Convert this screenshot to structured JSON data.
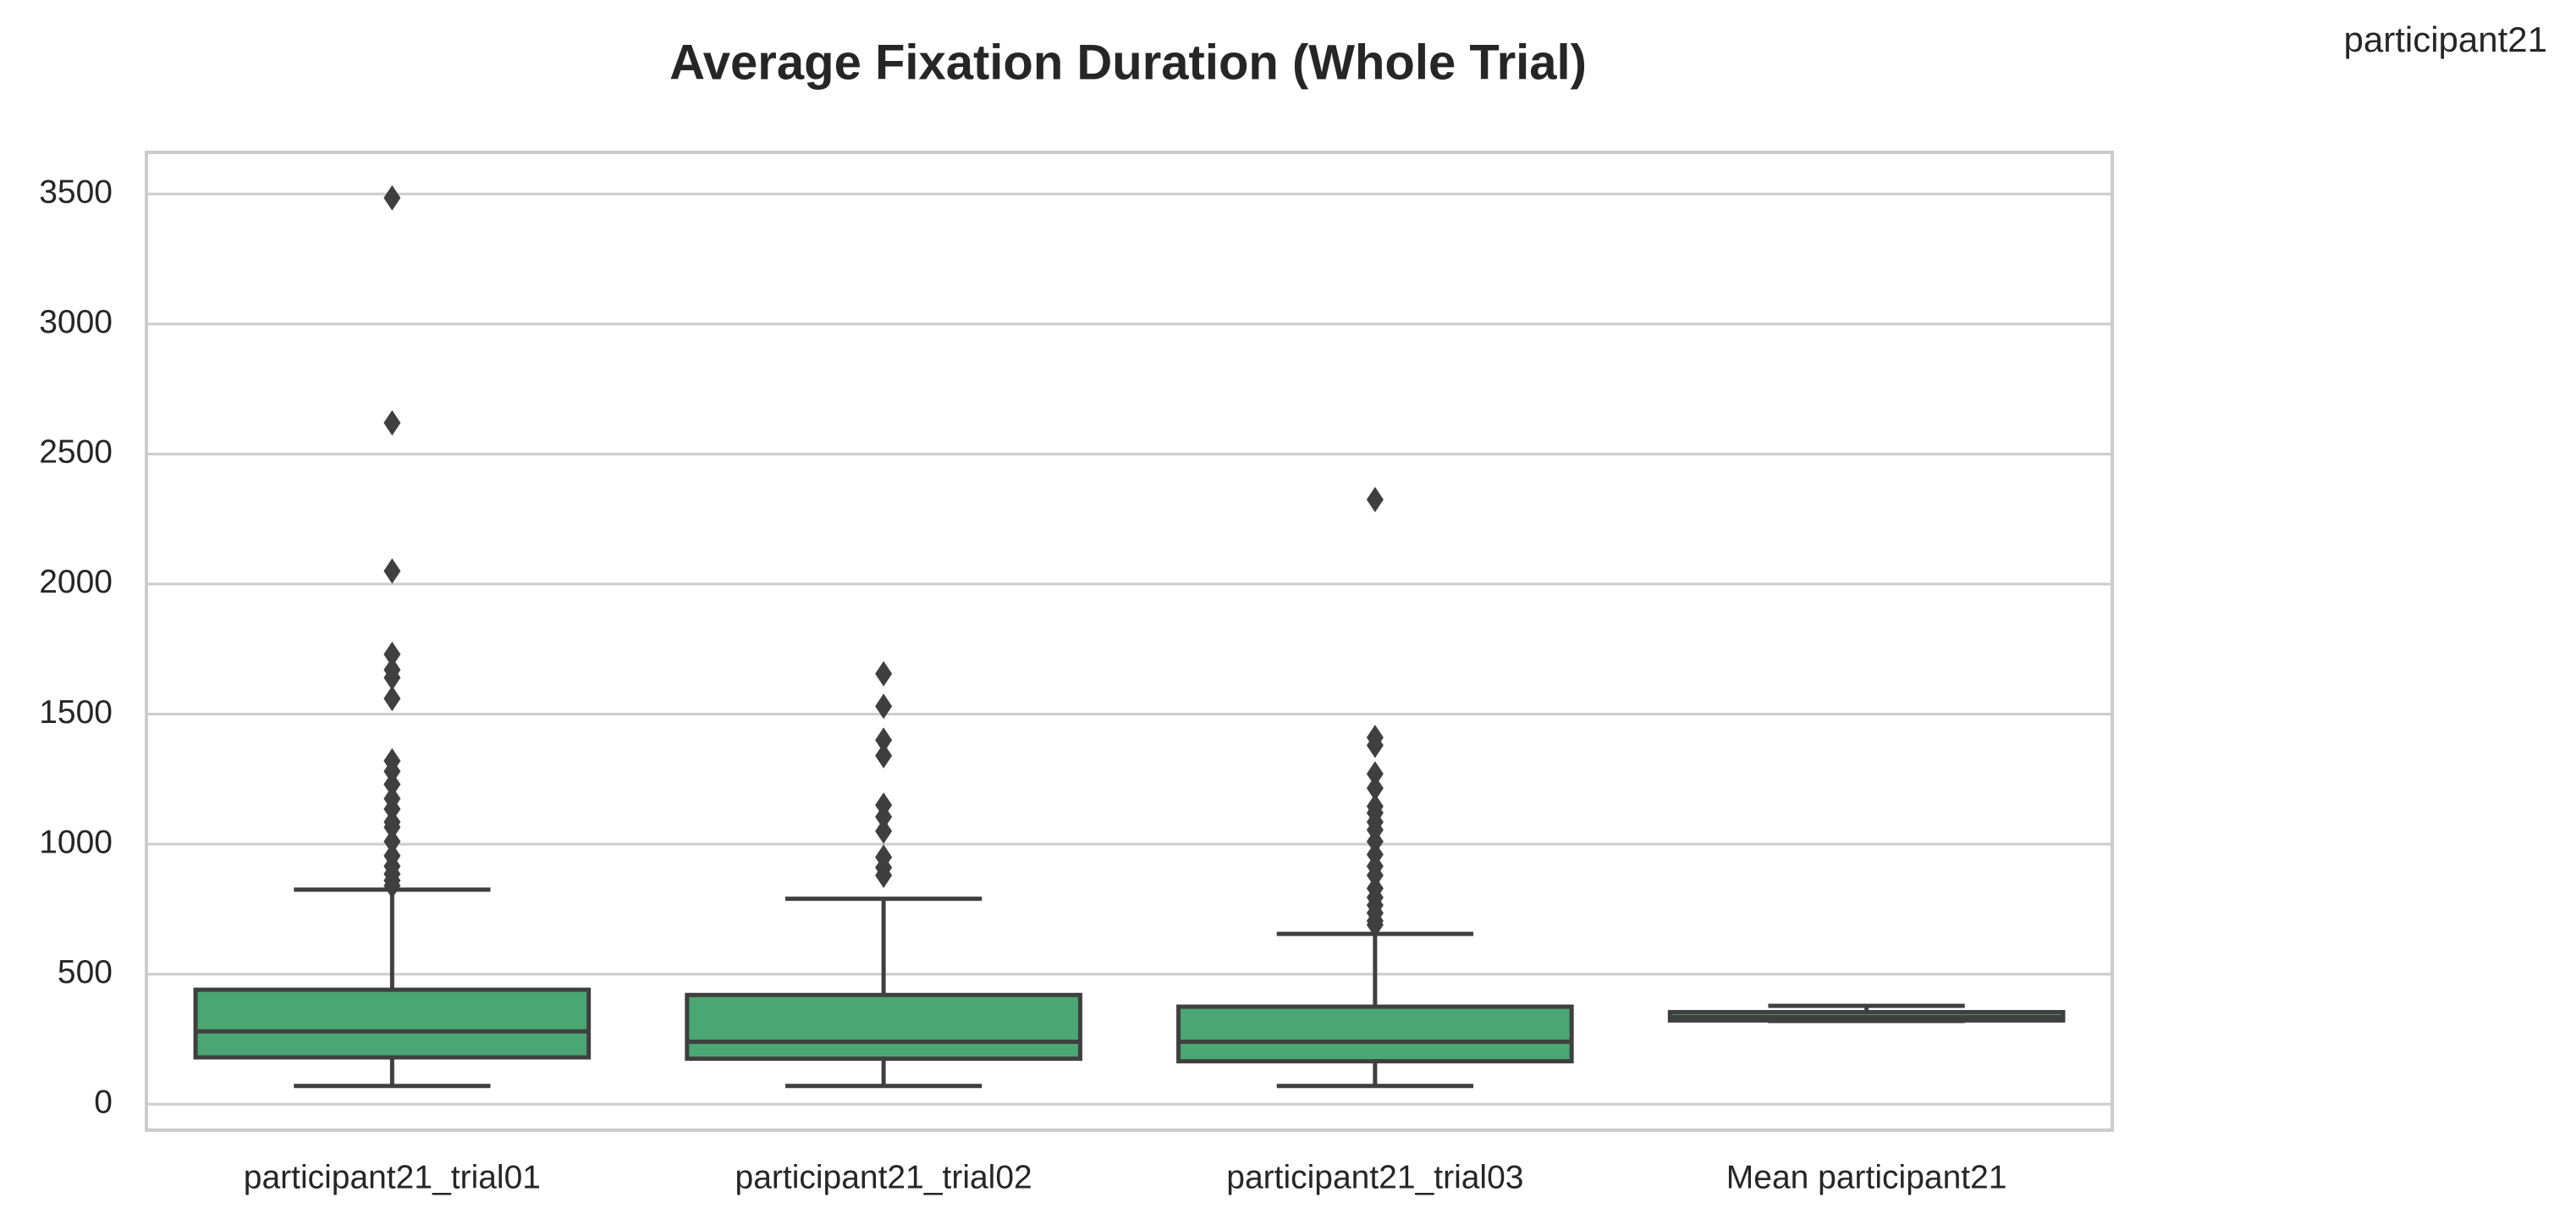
{
  "chart_data": {
    "type": "box",
    "title": "Average Fixation Duration (Whole Trial)",
    "annotation": "participant21",
    "categories": [
      "participant21_trial01",
      "participant21_trial02",
      "participant21_trial03",
      "Mean participant21"
    ],
    "color": "#4aa673",
    "ylim": [
      -100,
      3660
    ],
    "yticks": [
      0,
      500,
      1000,
      1500,
      2000,
      2500,
      3000,
      3500
    ],
    "grid": true,
    "boxes": [
      {
        "whislo": 70,
        "q1": 180,
        "med": 280,
        "q3": 440,
        "whishi": 825,
        "fliers": [
          3485,
          2620,
          2050,
          1730,
          1670,
          1640,
          1560,
          1320,
          1280,
          1230,
          1175,
          1135,
          1085,
          1065,
          1010,
          955,
          915,
          885,
          860,
          840
        ]
      },
      {
        "whislo": 70,
        "q1": 175,
        "med": 240,
        "q3": 420,
        "whishi": 790,
        "fliers": [
          1655,
          1530,
          1400,
          1340,
          1150,
          1105,
          1050,
          950,
          910,
          880
        ]
      },
      {
        "whislo": 70,
        "q1": 165,
        "med": 240,
        "q3": 375,
        "whishi": 655,
        "fliers": [
          2325,
          1410,
          1380,
          1270,
          1215,
          1145,
          1120,
          1085,
          1055,
          1010,
          960,
          915,
          880,
          830,
          795,
          765,
          735,
          705,
          690
        ]
      },
      {
        "whislo": 320,
        "q1": 322,
        "med": 335,
        "q3": 354,
        "whishi": 378,
        "fliers": []
      }
    ]
  }
}
